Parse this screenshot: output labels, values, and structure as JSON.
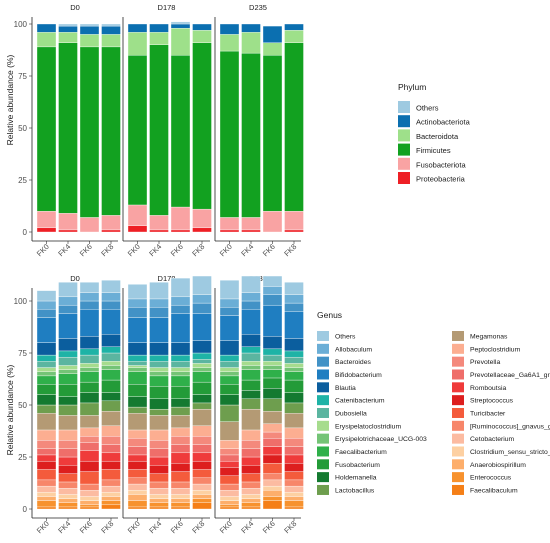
{
  "chart_data": [
    {
      "type": "bar",
      "stacked": true,
      "facets": [
        "D0",
        "D178",
        "D235"
      ],
      "categories": [
        "FK0",
        "FK4",
        "FK6",
        "FK8"
      ],
      "ylabel": "Relative abundance (%)",
      "ylim": [
        0,
        100
      ],
      "yticks": [
        0,
        25,
        50,
        75,
        100
      ],
      "legend": {
        "title": "Phylum",
        "position": "right"
      },
      "series": [
        {
          "name": "Others",
          "color": "#9ECAE1",
          "values": [
            [
              0,
              1,
              1,
              1
            ],
            [
              0,
              0,
              1,
              0
            ],
            [
              0,
              0,
              0,
              0
            ]
          ]
        },
        {
          "name": "Actinobacteriota",
          "color": "#0B6FB0",
          "values": [
            [
              4,
              3,
              4,
              4
            ],
            [
              4,
              4,
              2,
              3
            ],
            [
              5,
              4,
              8,
              3
            ]
          ]
        },
        {
          "name": "Bacteroidota",
          "color": "#9EE08A",
          "values": [
            [
              7,
              5,
              6,
              6
            ],
            [
              11,
              6,
              13,
              6
            ],
            [
              8,
              10,
              6,
              6
            ]
          ]
        },
        {
          "name": "Firmicutes",
          "color": "#12A120",
          "values": [
            [
              79,
              82,
              82,
              81
            ],
            [
              72,
              82,
              73,
              80
            ],
            [
              80,
              79,
              75,
              81
            ]
          ]
        },
        {
          "name": "Fusobacteriota",
          "color": "#F9A3A3",
          "values": [
            [
              8,
              8,
              7,
              7
            ],
            [
              10,
              7,
              11,
              9
            ],
            [
              6,
              6,
              10,
              9
            ]
          ]
        },
        {
          "name": "Proteobacteria",
          "color": "#EE1F25",
          "values": [
            [
              2,
              1,
              0,
              1
            ],
            [
              3,
              1,
              1,
              2
            ],
            [
              1,
              1,
              0,
              1
            ]
          ]
        }
      ]
    },
    {
      "type": "bar",
      "stacked": true,
      "facets": [
        "D0",
        "D178",
        "D235"
      ],
      "categories": [
        "FK0",
        "FK4",
        "FK6",
        "FK8"
      ],
      "ylabel": "Relative abundance (%)",
      "ylim": [
        0,
        100
      ],
      "yticks": [
        0,
        25,
        50,
        75,
        100
      ],
      "legend": {
        "title": "Genus",
        "position": "right"
      },
      "series": [
        {
          "name": "Others",
          "color": "#9ECAE1",
          "values": [
            [
              5,
              7,
              5,
              6
            ],
            [
              7,
              8,
              9,
              9
            ],
            [
              9,
              8,
              5,
              6
            ]
          ]
        },
        {
          "name": "Allobaculum",
          "color": "#6BAED6",
          "values": [
            [
              4,
              4,
              4,
              4
            ],
            [
              4,
              4,
              4,
              4
            ],
            [
              4,
              4,
              4,
              4
            ]
          ]
        },
        {
          "name": "Bacteroides",
          "color": "#4292C6",
          "values": [
            [
              4,
              4,
              4,
              4
            ],
            [
              5,
              5,
              4,
              5
            ],
            [
              4,
              4,
              5,
              4
            ]
          ]
        },
        {
          "name": "Bifidobacterium",
          "color": "#1F7EC1",
          "values": [
            [
              12,
              12,
              13,
              12
            ],
            [
              12,
              12,
              14,
              13
            ],
            [
              12,
              12,
              15,
              13
            ]
          ]
        },
        {
          "name": "Blautia",
          "color": "#0B5E9E",
          "values": [
            [
              6,
              6,
              6,
              6
            ],
            [
              6,
              6,
              6,
              6
            ],
            [
              7,
              6,
              6,
              6
            ]
          ]
        },
        {
          "name": "Catenibacterium",
          "color": "#1EB3A6",
          "values": [
            [
              3,
              3,
              3,
              3
            ],
            [
              3,
              3,
              3,
              3
            ],
            [
              3,
              3,
              3,
              3
            ]
          ]
        },
        {
          "name": "Dubosiella",
          "color": "#5BB5A0",
          "values": [
            [
              3,
              4,
              4,
              4
            ],
            [
              2,
              3,
              3,
              2
            ],
            [
              3,
              4,
              3,
              3
            ]
          ]
        },
        {
          "name": "Erysipelatoclostridium",
          "color": "#A6DC8E",
          "values": [
            [
              2,
              2,
              2,
              2
            ],
            [
              1,
              2,
              2,
              2
            ],
            [
              2,
              2,
              2,
              2
            ]
          ]
        },
        {
          "name": "Erysipelotrichaceae_UCG-003",
          "color": "#74C476",
          "values": [
            [
              2,
              2,
              2,
              2
            ],
            [
              2,
              2,
              2,
              2
            ],
            [
              2,
              2,
              2,
              2
            ]
          ]
        },
        {
          "name": "Faecalibacterium",
          "color": "#2FB04A",
          "values": [
            [
              4,
              5,
              5,
              5
            ],
            [
              6,
              5,
              5,
              5
            ],
            [
              4,
              5,
              4,
              4
            ]
          ]
        },
        {
          "name": "Fusobacterium",
          "color": "#239B38",
          "values": [
            [
              5,
              6,
              5,
              6
            ],
            [
              6,
              6,
              6,
              6
            ],
            [
              5,
              5,
              5,
              6
            ]
          ]
        },
        {
          "name": "Holdemanella",
          "color": "#147A30",
          "values": [
            [
              5,
              4,
              5,
              4
            ],
            [
              5,
              5,
              4,
              4
            ],
            [
              5,
              4,
              5,
              5
            ]
          ]
        },
        {
          "name": "Lactobacillus",
          "color": "#6E9E4E",
          "values": [
            [
              4,
              5,
              6,
              5
            ],
            [
              3,
              3,
              4,
              3
            ],
            [
              8,
              5,
              6,
              5
            ]
          ]
        },
        {
          "name": "Megamonas",
          "color": "#B49A74",
          "values": [
            [
              8,
              7,
              6,
              7
            ],
            [
              8,
              7,
              6,
              8
            ],
            [
              9,
              10,
              6,
              7
            ]
          ]
        },
        {
          "name": "Peptoclostridium",
          "color": "#FCAE91",
          "values": [
            [
              5,
              5,
              4,
              5
            ],
            [
              4,
              5,
              4,
              5
            ],
            [
              4,
              5,
              4,
              5
            ]
          ]
        },
        {
          "name": "Prevotella",
          "color": "#F4897C",
          "values": [
            [
              4,
              4,
              3,
              4
            ],
            [
              4,
              4,
              4,
              4
            ],
            [
              3,
              4,
              3,
              4
            ]
          ]
        },
        {
          "name": "Prevotellaceae_Ga6A1_group",
          "color": "#EF6E6A",
          "values": [
            [
              3,
              4,
              4,
              4
            ],
            [
              4,
              4,
              4,
              4
            ],
            [
              3,
              4,
              4,
              4
            ]
          ]
        },
        {
          "name": "Romboutsia",
          "color": "#EF3B3B",
          "values": [
            [
              3,
              4,
              5,
              4
            ],
            [
              3,
              4,
              5,
              4
            ],
            [
              3,
              4,
              4,
              4
            ]
          ]
        },
        {
          "name": "Streptococcus",
          "color": "#DD1E1E",
          "values": [
            [
              4,
              4,
              5,
              4
            ],
            [
              4,
              4,
              4,
              4
            ],
            [
              4,
              4,
              4,
              4
            ]
          ]
        },
        {
          "name": "Turicibacter",
          "color": "#F45B3C",
          "values": [
            [
              5,
              4,
              6,
              5
            ],
            [
              4,
              4,
              5,
              4
            ],
            [
              4,
              4,
              5,
              4
            ]
          ]
        },
        {
          "name": "[Ruminococcus]_gnavus_group",
          "color": "#F7866A",
          "values": [
            [
              3,
              3,
              3,
              3
            ],
            [
              3,
              3,
              3,
              3
            ],
            [
              3,
              3,
              3,
              3
            ]
          ]
        },
        {
          "name": "Cetobacterium",
          "color": "#FCBBA1",
          "values": [
            [
              3,
              3,
              3,
              3
            ],
            [
              3,
              3,
              3,
              3
            ],
            [
              3,
              3,
              3,
              3
            ]
          ]
        },
        {
          "name": "Clostridium_sensu_stricto_1",
          "color": "#FDD0A2",
          "values": [
            [
              2,
              2,
              2,
              2
            ],
            [
              2,
              2,
              2,
              2
            ],
            [
              2,
              2,
              2,
              2
            ]
          ]
        },
        {
          "name": "Anaerobiospirillum",
          "color": "#FDAE6B",
          "values": [
            [
              2,
              2,
              2,
              2
            ],
            [
              3,
              2,
              2,
              2
            ],
            [
              2,
              2,
              3,
              2
            ]
          ]
        },
        {
          "name": "Enterococcus",
          "color": "#F7922E",
          "values": [
            [
              3,
              2,
              1,
              2
            ],
            [
              3,
              2,
              2,
              2
            ],
            [
              1,
              2,
              2,
              3
            ]
          ]
        },
        {
          "name": "Faecalibaculum",
          "color": "#F57F17",
          "values": [
            [
              1,
              1,
              1,
              2
            ],
            [
              1,
              1,
              1,
              3
            ],
            [
              1,
              1,
              4,
              1
            ]
          ]
        }
      ]
    }
  ]
}
